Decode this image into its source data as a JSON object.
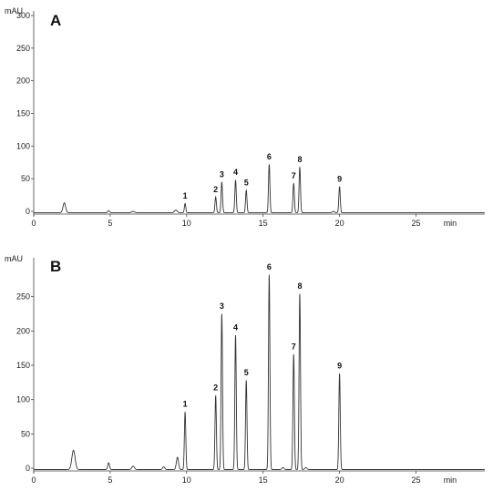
{
  "chart_data": [
    {
      "type": "line",
      "panel_label": "A",
      "y_unit": "mAU",
      "x_unit": "min",
      "xlim": [
        0,
        29.5
      ],
      "ylim": [
        -5,
        300
      ],
      "x_ticks": [
        0,
        5,
        10,
        15,
        20,
        25
      ],
      "y_ticks": [
        0,
        50,
        100,
        150,
        200,
        250,
        300
      ],
      "baseline": -2,
      "minor_peaks": [
        {
          "x": 2.0,
          "y": 15,
          "w": 0.12
        },
        {
          "x": 4.9,
          "y": 3,
          "w": 0.08
        },
        {
          "x": 6.5,
          "y": 2,
          "w": 0.12
        },
        {
          "x": 9.3,
          "y": 4,
          "w": 0.12
        },
        {
          "x": 19.6,
          "y": 2,
          "w": 0.1
        }
      ],
      "peaks": [
        {
          "label": "1",
          "x": 9.9,
          "y": 14
        },
        {
          "label": "2",
          "x": 11.9,
          "y": 24
        },
        {
          "label": "3",
          "x": 12.3,
          "y": 47
        },
        {
          "label": "4",
          "x": 13.2,
          "y": 50
        },
        {
          "label": "5",
          "x": 13.9,
          "y": 34
        },
        {
          "label": "6",
          "x": 15.4,
          "y": 74
        },
        {
          "label": "7",
          "x": 17.0,
          "y": 45
        },
        {
          "label": "8",
          "x": 17.4,
          "y": 70
        },
        {
          "label": "9",
          "x": 20.0,
          "y": 40
        }
      ]
    },
    {
      "type": "line",
      "panel_label": "B",
      "y_unit": "mAU",
      "x_unit": "min",
      "xlim": [
        0,
        29.5
      ],
      "ylim": [
        -5,
        300
      ],
      "x_ticks": [
        0,
        5,
        10,
        15,
        20,
        25
      ],
      "y_ticks": [
        0,
        50,
        100,
        150,
        200,
        250
      ],
      "baseline": -2,
      "minor_peaks": [
        {
          "x": 2.6,
          "y": 28,
          "w": 0.15
        },
        {
          "x": 4.9,
          "y": 10,
          "w": 0.08
        },
        {
          "x": 6.5,
          "y": 5,
          "w": 0.12
        },
        {
          "x": 8.5,
          "y": 4,
          "w": 0.1
        },
        {
          "x": 9.4,
          "y": 18,
          "w": 0.1
        },
        {
          "x": 16.3,
          "y": 3,
          "w": 0.1
        },
        {
          "x": 17.8,
          "y": 3,
          "w": 0.1
        }
      ],
      "peaks": [
        {
          "label": "1",
          "x": 9.9,
          "y": 84
        },
        {
          "label": "2",
          "x": 11.9,
          "y": 108
        },
        {
          "label": "3",
          "x": 12.3,
          "y": 227
        },
        {
          "label": "4",
          "x": 13.2,
          "y": 196
        },
        {
          "label": "5",
          "x": 13.9,
          "y": 130
        },
        {
          "label": "6",
          "x": 15.4,
          "y": 284
        },
        {
          "label": "7",
          "x": 17.0,
          "y": 168
        },
        {
          "label": "8",
          "x": 17.4,
          "y": 256
        },
        {
          "label": "9",
          "x": 20.0,
          "y": 140
        }
      ]
    }
  ]
}
